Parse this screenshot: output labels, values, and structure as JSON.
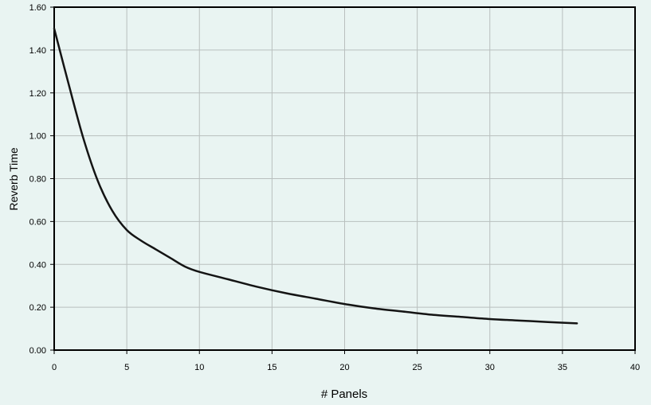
{
  "chart_data": {
    "type": "line",
    "title": "",
    "xlabel": "# Panels",
    "ylabel": "Reverb Time",
    "xlim": [
      0,
      40
    ],
    "ylim": [
      0,
      1.6
    ],
    "x_ticks": [
      0,
      5,
      10,
      15,
      20,
      25,
      30,
      35,
      40
    ],
    "y_ticks": [
      0,
      0.2,
      0.4,
      0.6,
      0.8,
      1.0,
      1.2,
      1.4,
      1.6
    ],
    "x_tick_labels": [
      "0",
      "5",
      "10",
      "15",
      "20",
      "25",
      "30",
      "35",
      "40"
    ],
    "y_tick_labels": [
      "0.00",
      "0.20",
      "0.40",
      "0.60",
      "0.80",
      "1.00",
      "1.20",
      "1.40",
      "1.60"
    ],
    "grid": true,
    "legend": "none",
    "colors": {
      "background": "#e9f4f2",
      "grid": "#b9bfbe",
      "line": "#141414",
      "axis": "#000000"
    },
    "series": [
      {
        "x": [
          0,
          1,
          2,
          3,
          4,
          5,
          6,
          7,
          8,
          9,
          10,
          12,
          14,
          16,
          18,
          20,
          22,
          24,
          26,
          28,
          30,
          32,
          34,
          36
        ],
        "y": [
          1.5,
          1.24,
          0.99,
          0.79,
          0.65,
          0.56,
          0.51,
          0.47,
          0.43,
          0.39,
          0.365,
          0.33,
          0.295,
          0.265,
          0.24,
          0.215,
          0.195,
          0.18,
          0.165,
          0.155,
          0.145,
          0.138,
          0.131,
          0.125
        ]
      }
    ]
  }
}
